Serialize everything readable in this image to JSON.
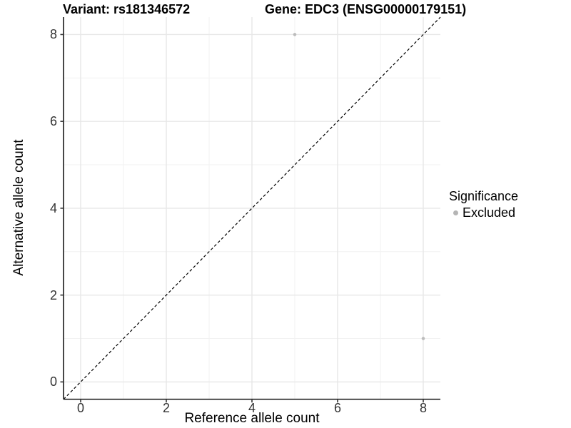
{
  "titles": {
    "left": "Variant: rs181346572",
    "right": "Gene: EDC3 (ENSG00000179151)"
  },
  "chart_data": {
    "type": "scatter",
    "xlabel": "Reference allele count",
    "ylabel": "Alternative allele count",
    "xlim": [
      -0.4,
      8.4
    ],
    "ylim": [
      -0.4,
      8.4
    ],
    "xticks": [
      0,
      2,
      4,
      6,
      8
    ],
    "yticks": [
      0,
      2,
      4,
      6,
      8
    ],
    "minor_x": [
      1,
      3,
      5,
      7
    ],
    "minor_y": [
      1,
      3,
      5,
      7
    ],
    "grid": true,
    "points": [
      {
        "x": 5,
        "y": 8,
        "series": "Excluded"
      },
      {
        "x": 8,
        "y": 1,
        "series": "Excluded"
      }
    ],
    "identity_line": {
      "style": "dashed",
      "from": -0.4,
      "to": 8.4,
      "color": "#000000"
    },
    "legend": {
      "title": "Significance",
      "position": "right",
      "items": [
        {
          "label": "Excluded",
          "color": "#b5b5b5"
        }
      ]
    },
    "colors": {
      "point": "#bcbcbc",
      "grid_major": "#e7e7e7",
      "grid_minor": "#f2f2f2",
      "axis": "#333333",
      "background": "#ffffff"
    }
  }
}
